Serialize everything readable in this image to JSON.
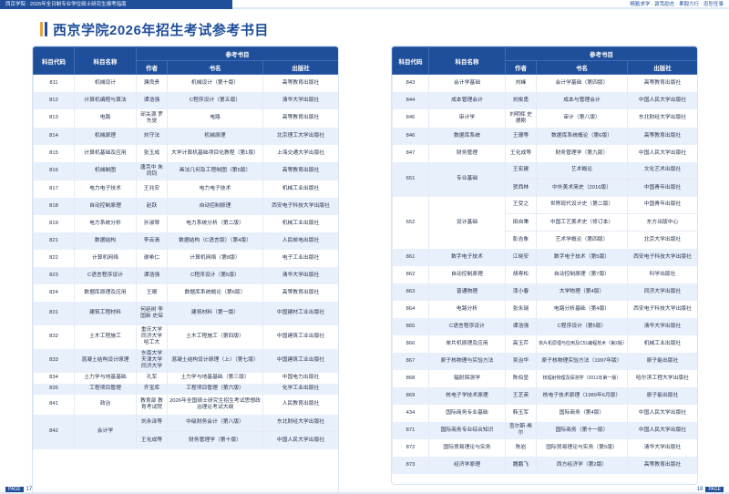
{
  "header": {
    "left_text": "西京学院 · 2026年全日制专业学位硕士研究生报考指南",
    "right_text": "精勤求学 · 敦笃励志 · 果毅力行 · 忠恕任事",
    "color_brand": "#1f4e9a",
    "color_accent": "#e9a13b"
  },
  "title": "西京学院2026年招生考试参考书目",
  "columns": {
    "code": "科目代码",
    "name": "科目名称",
    "group": "参考书目",
    "author": "作者",
    "book": "书名",
    "publisher": "出版社"
  },
  "left_rows": [
    {
      "code": "811",
      "name": "机械设计",
      "author": "濮良贵",
      "book": "机械设计（第十版）",
      "pub": "高等教育出版社"
    },
    {
      "code": "812",
      "name": "计算机编程与算法",
      "author": "谭浩强",
      "book": "C程序设计（第五版）",
      "pub": "清华大学出版社"
    },
    {
      "code": "813",
      "name": "电路",
      "author": "邱关源 罗先觉",
      "book": "电路",
      "pub": "高等教育出版社"
    },
    {
      "code": "814",
      "name": "机械原理",
      "author": "刘守法",
      "book": "机械原理",
      "pub": "北京理工大学出版社"
    },
    {
      "code": "815",
      "name": "计算机基础及应用",
      "author": "张玉成",
      "book": "大学计算机基础项目化教程（第1版）",
      "pub": "上海交通大学出版社"
    },
    {
      "code": "816",
      "name": "机械制图",
      "author": "唐克中 朱同钧",
      "book": "画法几何及工程制图（第5版）",
      "pub": "高等教育出版社"
    },
    {
      "code": "817",
      "name": "电力电子技术",
      "author": "王兆安",
      "book": "电力电子技术",
      "pub": "机械工业出版社"
    },
    {
      "code": "818",
      "name": "自动控制原理",
      "author": "赵跃",
      "book": "自动控制原理",
      "pub": "西安电子科技大学出版社"
    },
    {
      "code": "819",
      "name": "电力系统分析",
      "author": "孙淑琴",
      "book": "电力系统分析（第二版）",
      "pub": "机械工业出版社"
    },
    {
      "code": "821",
      "name": "数据结构",
      "author": "李云清",
      "book": "数据结构（C语言版）（第4版）",
      "pub": "人民邮电出版社"
    },
    {
      "code": "822",
      "name": "计算机网络",
      "author": "谢希仁",
      "book": "计算机网络（第8版）",
      "pub": "电子工业出版社"
    },
    {
      "code": "823",
      "name": "C语言程序设计",
      "author": "谭浩强",
      "book": "C程序设计（第5版）",
      "pub": "清华大学出版社"
    },
    {
      "code": "824",
      "name": "数据库原理及应用",
      "author": "王珊",
      "book": "数据库系统概论（第6版）",
      "pub": "高等教育出版社"
    },
    {
      "code": "831",
      "name": "建筑工程材料",
      "author": "何廷树 李国新 史琛",
      "book": "建筑材料（第一版）",
      "pub": "中国建材工业出版社"
    },
    {
      "code": "832",
      "name": "土木工程施工",
      "author": "重庆大学 同济大学 哈工大",
      "book": "土木工程施工（第四版）",
      "pub": "中国建筑工业出版社"
    },
    {
      "code": "833",
      "name": "混凝土结构设计原理",
      "author": "东南大学 天津大学 同济大学",
      "book": "混凝土结构设计原理（上）（第七版）",
      "pub": "中国建筑工业出版社"
    },
    {
      "code": "834",
      "name": "土力学与地基基础",
      "author": "孔军",
      "book": "土力学与地基基础（第三版）",
      "pub": "中国电力出版社"
    },
    {
      "code": "835",
      "name": "工程项目管理",
      "author": "齐宝库",
      "book": "工程项目管理（第六版）",
      "pub": "化学工业出版社"
    },
    {
      "code": "841",
      "name": "政治",
      "author": "教育部 教育考试院",
      "book": "2026年全国硕士研究生招生考试思想政治理论考试大纲",
      "pub": "人民教育出版社"
    },
    {
      "code": "842",
      "name": "会计学",
      "author": "刘永泽等",
      "book": "中级财务会计（第八版）",
      "pub": "东北财经大学出版社"
    },
    {
      "code": "",
      "name": "",
      "author": "王化成等",
      "book": "财务管理学（第十版）",
      "pub": "中国人民大学出版社"
    }
  ],
  "right_rows": [
    {
      "code": "843",
      "name": "会计学基础",
      "author": "刘峰",
      "book": "会计学基础（第四版）",
      "pub": "高等教育出版社"
    },
    {
      "code": "844",
      "name": "成本管理会计",
      "author": "刘俊勇",
      "book": "成本与管理会计",
      "pub": "中国人民大学出版社"
    },
    {
      "code": "845",
      "name": "审计学",
      "author": "刘明辉 史德刚",
      "book": "审计（第八版）",
      "pub": "东北财经大学出版社"
    },
    {
      "code": "846",
      "name": "数据库系统",
      "author": "王珊等",
      "book": "数据库系统概论（第6版）",
      "pub": "高等教育出版社"
    },
    {
      "code": "847",
      "name": "财务管理",
      "author": "王化成等",
      "book": "财务管理学（第九版）",
      "pub": "中国人民大学出版社"
    },
    {
      "code": "651",
      "name": "专业基础",
      "author": "王宏建",
      "book": "艺术概论",
      "pub": "文化艺术出版社"
    },
    {
      "code": "",
      "name": "",
      "author": "贺西林",
      "book": "中外美术简史（2016版）",
      "pub": "中国青年出版社"
    },
    {
      "code": "652",
      "name": "设计基础",
      "author": "王受之",
      "book": "世界现代设计史（第二版）",
      "pub": "中国青年出版社"
    },
    {
      "code": "",
      "name": "",
      "author": "田自秉",
      "book": "中国工艺美术史（修订本）",
      "pub": "东方出版中心"
    },
    {
      "code": "",
      "name": "",
      "author": "彭吉象",
      "book": "艺术学概论（第四版）",
      "pub": "北京大学出版社"
    },
    {
      "code": "861",
      "name": "数字电子技术",
      "author": "江晓安",
      "book": "数字电子技术（第5版）",
      "pub": "西安电子科技大学出版社"
    },
    {
      "code": "862",
      "name": "自动控制原理",
      "author": "胡寿松",
      "book": "自动控制原理（第7版）",
      "pub": "科学出版社"
    },
    {
      "code": "863",
      "name": "普通物理",
      "author": "漆小春",
      "book": "大学物理（第4版）",
      "pub": "同济大学出版社"
    },
    {
      "code": "864",
      "name": "电路分析",
      "author": "张永瑞",
      "book": "电路分析基础（第4版）",
      "pub": "西安电子科技大学出版社"
    },
    {
      "code": "865",
      "name": "C语言程序设计",
      "author": "谭浩强",
      "book": "C程序设计（第5版）",
      "pub": "清华大学出版社"
    },
    {
      "code": "866",
      "name": "单片机原理及应用",
      "author": "高玉芹",
      "book": "单片机原理与应用及C51编程技术（第2版）",
      "pub": "机械工业出版社"
    },
    {
      "code": "867",
      "name": "原子核物理与实验方法",
      "author": "吴治华",
      "book": "原子核物理实验方法（1997年版）",
      "pub": "原子能出版社"
    },
    {
      "code": "868",
      "name": "辐射探测学",
      "author": "陈伯显",
      "book": "核辐射物理及探测学（2011年第一版）",
      "pub": "哈尔滨工程大学出版社"
    },
    {
      "code": "869",
      "name": "核电子学技术原理",
      "author": "王芝英",
      "book": "核电子技术原理（1989年6月版）",
      "pub": "原子能出版社"
    },
    {
      "code": "434",
      "name": "国际商务专业基础",
      "author": "韩玉军",
      "book": "国际商务（第4版）",
      "pub": "中国人民大学出版社"
    },
    {
      "code": "871",
      "name": "国际商务专业综合知识",
      "author": "查尔斯·希尔",
      "book": "国际商务（第十一版）",
      "pub": "中国人民大学出版社"
    },
    {
      "code": "872",
      "name": "国际贸易理论与实务",
      "author": "陈岩",
      "book": "国际贸易理论与实务（第5版）",
      "pub": "清华大学出版社"
    },
    {
      "code": "873",
      "name": "经济学原理",
      "author": "魏鹏飞",
      "book": "西方经济学（第2版）",
      "pub": "高等教育出版社"
    }
  ],
  "pages": {
    "left": "17",
    "right": "18",
    "label": "PAGE"
  }
}
